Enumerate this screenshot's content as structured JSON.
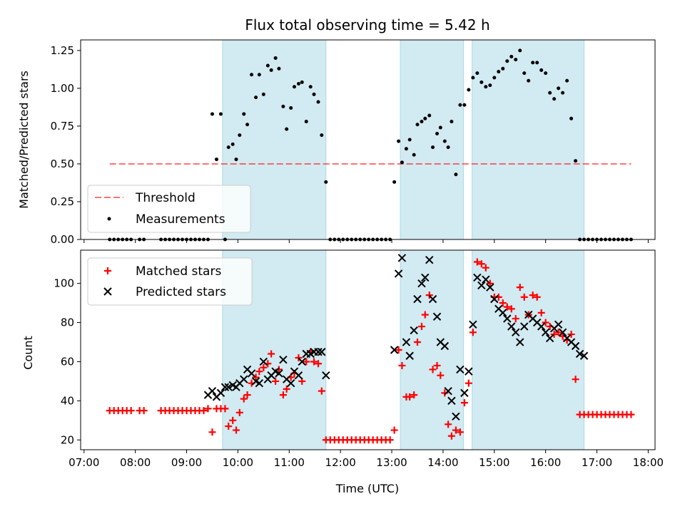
{
  "title": "Flux total observing time = 5.42 h",
  "colors": {
    "shade": "#add8e6",
    "threshold": "#ff0000",
    "measurement": "#000000",
    "matched": "#ff0000",
    "predicted": "#000000"
  },
  "chart_data": [
    {
      "type": "scatter",
      "id": "ratio",
      "ylabel": "Matched/Predicted stars",
      "xlabel": "",
      "xlim": [
        "06:56",
        "18:08"
      ],
      "ylim": [
        0,
        1.32
      ],
      "yticks": [
        0,
        0.25,
        0.5,
        0.75,
        1.0,
        1.25
      ],
      "ytick_labels": [
        "0.00",
        "0.25",
        "0.50",
        "0.75",
        "1.00",
        "1.25"
      ],
      "shaded_intervals": [
        [
          "09:42",
          "11:43"
        ],
        [
          "13:10",
          "14:24"
        ],
        [
          "14:34",
          "16:45"
        ]
      ],
      "legend_position": "lower-left",
      "threshold": {
        "name": "Threshold",
        "y": 0.5,
        "x_range": [
          "07:30",
          "17:40"
        ]
      },
      "series": [
        {
          "name": "Measurements",
          "marker": "dot",
          "x": [
            "07:30",
            "07:35",
            "07:40",
            "07:45",
            "07:50",
            "07:55",
            "08:05",
            "08:10",
            "08:30",
            "08:35",
            "08:40",
            "08:45",
            "08:50",
            "08:55",
            "09:00",
            "09:05",
            "09:10",
            "09:15",
            "09:20",
            "09:25",
            "09:30",
            "09:35",
            "09:40",
            "09:45",
            "09:49",
            "09:54",
            "09:58",
            "10:02",
            "10:07",
            "10:11",
            "10:16",
            "10:21",
            "10:25",
            "10:30",
            "10:35",
            "10:39",
            "10:44",
            "10:48",
            "10:53",
            "10:57",
            "11:02",
            "11:06",
            "11:11",
            "11:15",
            "11:20",
            "11:25",
            "11:29",
            "11:34",
            "11:38",
            "11:43",
            "11:48",
            "11:53",
            "11:58",
            "12:03",
            "12:08",
            "12:13",
            "12:18",
            "12:23",
            "12:28",
            "12:33",
            "12:38",
            "12:43",
            "12:48",
            "12:53",
            "12:58",
            "13:03",
            "13:08",
            "13:12",
            "13:17",
            "13:21",
            "13:26",
            "13:30",
            "13:35",
            "13:39",
            "13:44",
            "13:48",
            "13:53",
            "13:57",
            "14:02",
            "14:06",
            "14:10",
            "14:15",
            "14:20",
            "14:25",
            "14:30",
            "14:35",
            "14:40",
            "14:45",
            "14:50",
            "14:55",
            "15:00",
            "15:05",
            "15:10",
            "15:15",
            "15:20",
            "15:25",
            "15:30",
            "15:35",
            "15:40",
            "15:45",
            "15:50",
            "15:55",
            "16:00",
            "16:05",
            "16:10",
            "16:15",
            "16:20",
            "16:25",
            "16:30",
            "16:35",
            "16:40",
            "16:45",
            "16:50",
            "16:55",
            "17:00",
            "17:05",
            "17:10",
            "17:15",
            "17:20",
            "17:25",
            "17:30",
            "17:35",
            "17:40"
          ],
          "y": [
            0,
            0,
            0,
            0,
            0,
            0,
            0,
            0,
            0,
            0,
            0,
            0,
            0,
            0,
            0,
            0,
            0,
            0,
            0,
            0,
            0.83,
            0.53,
            0.83,
            0,
            0.61,
            0.63,
            0.53,
            0.69,
            0.83,
            0.76,
            1.09,
            0.94,
            1.09,
            0.96,
            1.15,
            1.12,
            1.2,
            1.13,
            0.88,
            0.73,
            0.87,
            1.01,
            1.03,
            1.04,
            0.78,
            1.01,
            0.96,
            0.91,
            0.69,
            0.38,
            0,
            0,
            0,
            0,
            0,
            0,
            0,
            0,
            0,
            0,
            0,
            0,
            0,
            0,
            0,
            0.38,
            0.65,
            0.51,
            0.6,
            0.66,
            0.56,
            0.76,
            0.78,
            0.8,
            0.82,
            0.61,
            0.7,
            0.74,
            0.65,
            0.61,
            0.78,
            0.43,
            0.89,
            0.89,
            0.99,
            1.07,
            1.1,
            1.04,
            1.01,
            1.02,
            1.07,
            1.11,
            1.13,
            1.18,
            1.21,
            1.19,
            1.25,
            1.1,
            1.05,
            1.17,
            1.17,
            1.12,
            1.1,
            0.97,
            0.93,
            1.0,
            0.97,
            1.05,
            0.8,
            0.52,
            0,
            0,
            0,
            0,
            0,
            0,
            0,
            0,
            0,
            0,
            0,
            0,
            0
          ]
        }
      ]
    },
    {
      "type": "scatter",
      "id": "counts",
      "ylabel": "Count",
      "xlabel": "Time (UTC)",
      "xlim": [
        "06:56",
        "18:08"
      ],
      "ylim": [
        15,
        117
      ],
      "yticks": [
        20,
        40,
        60,
        80,
        100
      ],
      "ytick_labels": [
        "20",
        "40",
        "60",
        "80",
        "100"
      ],
      "xticks": [
        "07:00",
        "08:00",
        "09:00",
        "10:00",
        "11:00",
        "12:00",
        "13:00",
        "14:00",
        "15:00",
        "16:00",
        "17:00",
        "18:00"
      ],
      "xtick_labels": [
        "07:00",
        "08:00",
        "09:00",
        "10:00",
        "11:00",
        "12:00",
        "13:00",
        "14:00",
        "15:00",
        "16:00",
        "17:00",
        "18:00"
      ],
      "shaded_intervals": [
        [
          "09:42",
          "11:43"
        ],
        [
          "13:10",
          "14:24"
        ],
        [
          "14:34",
          "16:45"
        ]
      ],
      "legend_position": "upper-left",
      "series": [
        {
          "name": "Matched stars",
          "marker": "plus",
          "x": [
            "07:30",
            "07:35",
            "07:40",
            "07:45",
            "07:50",
            "07:55",
            "08:05",
            "08:10",
            "08:30",
            "08:35",
            "08:40",
            "08:45",
            "08:50",
            "08:55",
            "09:00",
            "09:05",
            "09:10",
            "09:15",
            "09:20",
            "09:25",
            "09:30",
            "09:35",
            "09:40",
            "09:45",
            "09:49",
            "09:54",
            "09:58",
            "10:02",
            "10:07",
            "10:11",
            "10:16",
            "10:21",
            "10:25",
            "10:30",
            "10:35",
            "10:39",
            "10:44",
            "10:48",
            "10:53",
            "10:57",
            "11:02",
            "11:06",
            "11:11",
            "11:15",
            "11:20",
            "11:25",
            "11:29",
            "11:34",
            "11:38",
            "11:43",
            "11:48",
            "11:53",
            "11:58",
            "12:03",
            "12:08",
            "12:13",
            "12:18",
            "12:23",
            "12:28",
            "12:33",
            "12:38",
            "12:43",
            "12:48",
            "12:53",
            "12:58",
            "13:03",
            "13:08",
            "13:12",
            "13:17",
            "13:21",
            "13:26",
            "13:30",
            "13:35",
            "13:39",
            "13:44",
            "13:48",
            "13:53",
            "13:57",
            "14:02",
            "14:06",
            "14:10",
            "14:15",
            "14:20",
            "14:25",
            "14:30",
            "14:35",
            "14:40",
            "14:45",
            "14:50",
            "14:55",
            "15:00",
            "15:05",
            "15:10",
            "15:15",
            "15:20",
            "15:25",
            "15:30",
            "15:35",
            "15:40",
            "15:45",
            "15:50",
            "15:55",
            "16:00",
            "16:05",
            "16:10",
            "16:15",
            "16:20",
            "16:25",
            "16:30",
            "16:35",
            "16:40",
            "16:45",
            "16:50",
            "16:55",
            "17:00",
            "17:05",
            "17:10",
            "17:15",
            "17:20",
            "17:25",
            "17:30",
            "17:35",
            "17:40"
          ],
          "y": [
            35,
            35,
            35,
            35,
            35,
            35,
            35,
            35,
            35,
            35,
            35,
            35,
            35,
            35,
            35,
            35,
            35,
            35,
            35,
            36,
            24,
            36,
            36,
            36,
            27,
            30,
            25,
            34,
            41,
            43,
            49,
            52,
            55,
            57,
            59,
            64,
            50,
            56,
            43,
            46,
            52,
            54,
            62,
            50,
            60,
            65,
            60,
            59,
            45,
            20,
            20,
            20,
            20,
            20,
            20,
            20,
            20,
            20,
            20,
            20,
            20,
            20,
            20,
            20,
            20,
            25,
            66,
            58,
            42,
            42,
            43,
            70,
            78,
            84,
            94,
            56,
            58,
            53,
            44,
            28,
            22,
            25,
            24,
            39,
            49,
            75,
            111,
            110,
            108,
            100,
            93,
            93,
            90,
            88,
            87,
            82,
            98,
            93,
            84,
            94,
            93,
            85,
            80,
            78,
            74,
            75,
            73,
            71,
            74,
            51,
            33,
            33,
            33,
            33,
            33,
            33,
            33,
            33,
            33,
            33,
            33,
            33,
            33
          ]
        },
        {
          "name": "Predicted stars",
          "marker": "x",
          "x": [
            "09:25",
            "09:30",
            "09:35",
            "09:40",
            "09:45",
            "09:49",
            "09:54",
            "09:58",
            "10:02",
            "10:07",
            "10:11",
            "10:16",
            "10:21",
            "10:25",
            "10:30",
            "10:35",
            "10:39",
            "10:44",
            "10:48",
            "10:53",
            "10:57",
            "11:02",
            "11:06",
            "11:11",
            "11:15",
            "11:20",
            "11:25",
            "11:29",
            "11:34",
            "11:38",
            "11:43",
            "13:03",
            "13:08",
            "13:12",
            "13:17",
            "13:21",
            "13:26",
            "13:30",
            "13:35",
            "13:39",
            "13:44",
            "13:48",
            "13:53",
            "13:57",
            "14:02",
            "14:06",
            "14:10",
            "14:15",
            "14:20",
            "14:25",
            "14:30",
            "14:35",
            "14:40",
            "14:45",
            "14:50",
            "14:55",
            "15:00",
            "15:05",
            "15:10",
            "15:15",
            "15:20",
            "15:25",
            "15:30",
            "15:35",
            "15:40",
            "15:45",
            "15:50",
            "15:55",
            "16:00",
            "16:05",
            "16:10",
            "16:15",
            "16:20",
            "16:25",
            "16:30",
            "16:35",
            "16:40",
            "16:45"
          ],
          "y": [
            43,
            45,
            42,
            44,
            47,
            47,
            48,
            47,
            49,
            51,
            56,
            54,
            50,
            49,
            60,
            51,
            53,
            55,
            54,
            61,
            51,
            49,
            55,
            53,
            60,
            64,
            64,
            65,
            65,
            65,
            53,
            66,
            105,
            113,
            70,
            63,
            76,
            92,
            100,
            103,
            112,
            92,
            83,
            70,
            68,
            45,
            40,
            32,
            56,
            44,
            55,
            79,
            103,
            99,
            102,
            98,
            92,
            87,
            85,
            82,
            78,
            75,
            70,
            78,
            84,
            82,
            80,
            78,
            75,
            72,
            77,
            79,
            75,
            72,
            70,
            68,
            64,
            63
          ]
        }
      ]
    }
  ]
}
